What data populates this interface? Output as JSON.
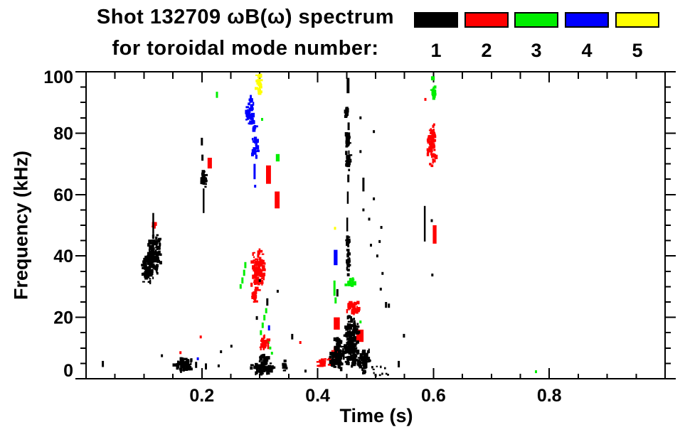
{
  "title": {
    "line1": "Shot 132709 ωB(ω) spectrum",
    "line2": "for toroidal mode number:"
  },
  "legend": {
    "entries": [
      {
        "label": "1",
        "color": "#000000"
      },
      {
        "label": "2",
        "color": "#ff0000"
      },
      {
        "label": "3",
        "color": "#00ee00"
      },
      {
        "label": "4",
        "color": "#0000ff"
      },
      {
        "label": "5",
        "color": "#ffff00"
      }
    ]
  },
  "axes": {
    "x": {
      "label": "Time (s)",
      "min": 0,
      "max": 1.0,
      "major_ticks": [
        0.2,
        0.4,
        0.6,
        0.8
      ],
      "minor_step": 0.05
    },
    "y": {
      "label": "Frequency (kHz)",
      "min": 0,
      "max": 100,
      "major_ticks": [
        0,
        20,
        40,
        60,
        80,
        100
      ],
      "minor_step": 5
    }
  },
  "chart_data": {
    "type": "scatter",
    "title": "Shot 132709 ωB(ω) spectrum for toroidal mode number",
    "xlabel": "Time (s)",
    "ylabel": "Frequency (kHz)",
    "xlim": [
      0,
      1.0
    ],
    "ylim": [
      0,
      100
    ],
    "grid": false,
    "legend_position": "top-right",
    "series": [
      {
        "name": "1",
        "color": "#000000",
        "clusters": [
          {
            "kind": "dash",
            "t": 0.029,
            "f": [
              3.8,
              5.8
            ]
          },
          {
            "kind": "blob",
            "t": [
              0.152,
              0.186
            ],
            "f": [
              2,
              7
            ],
            "n": 60
          },
          {
            "kind": "dash",
            "t": 0.19,
            "f": [
              3.5,
              5.5
            ]
          },
          {
            "kind": "dash",
            "t": 0.207,
            "f": [
              3,
              5
            ]
          },
          {
            "kind": "dot",
            "t": 0.229,
            "f": 4.2
          },
          {
            "kind": "blob",
            "t": [
              0.097,
              0.108
            ],
            "f": [
              31,
              41
            ],
            "n": 45
          },
          {
            "kind": "blob",
            "t": [
              0.106,
              0.119
            ],
            "f": [
              30,
              47
            ],
            "n": 75
          },
          {
            "kind": "blob",
            "t": [
              0.114,
              0.13
            ],
            "f": [
              33,
              48
            ],
            "n": 65
          },
          {
            "kind": "vline",
            "t": 0.116,
            "f": [
              47,
              54
            ]
          },
          {
            "kind": "dot",
            "t": 0.131,
            "f": 7.5
          },
          {
            "kind": "dash",
            "t": 0.2,
            "f": [
              76,
              78.5
            ]
          },
          {
            "kind": "dash",
            "t": 0.201,
            "f": [
              71,
              73
            ]
          },
          {
            "kind": "blob",
            "t": [
              0.199,
              0.209
            ],
            "f": [
              62,
              68.5
            ],
            "n": 30
          },
          {
            "kind": "vline",
            "t": 0.203,
            "f": [
              54,
              62
            ]
          },
          {
            "kind": "dash",
            "t": 0.4525,
            "f": [
              93,
              98
            ],
            "w": 4
          },
          {
            "kind": "blob",
            "t": [
              0.448,
              0.453
            ],
            "f": [
              84.5,
              89
            ],
            "n": 16
          },
          {
            "kind": "dash",
            "t": 0.4535,
            "f": [
              81,
              83.5
            ]
          },
          {
            "kind": "blob",
            "t": [
              0.449,
              0.456
            ],
            "f": [
              75,
              80.5
            ],
            "n": 22
          },
          {
            "kind": "blob",
            "t": [
              0.448,
              0.457
            ],
            "f": [
              67,
              74
            ],
            "n": 28
          },
          {
            "kind": "dash",
            "t": 0.453,
            "f": [
              64,
              66.5
            ]
          },
          {
            "kind": "vline",
            "t": 0.452,
            "f": [
              57,
              61
            ]
          },
          {
            "kind": "vline",
            "t": 0.451,
            "f": [
              48,
              52.5
            ]
          },
          {
            "kind": "blob",
            "t": [
              0.449,
              0.456
            ],
            "f": [
              43,
              47.5
            ],
            "n": 16
          },
          {
            "kind": "blob",
            "t": [
              0.45,
              0.456
            ],
            "f": [
              33,
              42
            ],
            "n": 20
          },
          {
            "kind": "blob",
            "t": [
              0.42,
              0.447
            ],
            "f": [
              2.5,
              11
            ],
            "n": 80
          },
          {
            "kind": "blob",
            "t": [
              0.428,
              0.442
            ],
            "f": [
              9,
              14.5
            ],
            "n": 20
          },
          {
            "kind": "blob",
            "t": [
              0.444,
              0.471
            ],
            "f": [
              2,
              21
            ],
            "n": 170
          },
          {
            "kind": "blob",
            "t": [
              0.468,
              0.492
            ],
            "f": [
              1.5,
              10
            ],
            "n": 55
          },
          {
            "kind": "speckle",
            "t": [
              0.493,
              0.522
            ],
            "f": [
              1,
              4
            ],
            "n": 12
          },
          {
            "kind": "blob",
            "t": [
              0.28,
              0.331
            ],
            "f": [
              1.4,
              5.5
            ],
            "n": 65
          },
          {
            "kind": "blob",
            "t": [
              0.296,
              0.318
            ],
            "f": [
              4,
              8.8
            ],
            "n": 30
          },
          {
            "kind": "dot",
            "t": 0.233,
            "f": 8.8
          },
          {
            "kind": "dot",
            "t": 0.251,
            "f": 10.6
          },
          {
            "kind": "dot",
            "t": 0.3,
            "f": 32
          },
          {
            "kind": "dash",
            "t": 0.295,
            "f": [
              19.2,
              20.4
            ]
          },
          {
            "kind": "vline",
            "t": 0.585,
            "f": [
              44.7,
              56.3
            ]
          },
          {
            "kind": "dot",
            "t": 0.597,
            "f": 51.5
          },
          {
            "kind": "dot",
            "t": 0.598,
            "f": 33.8
          },
          {
            "kind": "dot",
            "t": 0.474,
            "f": 85
          },
          {
            "kind": "dot",
            "t": 0.497,
            "f": 80.5
          },
          {
            "kind": "dot",
            "t": 0.474,
            "f": 74
          },
          {
            "kind": "dash",
            "t": 0.479,
            "f": [
              61,
              65.5
            ]
          },
          {
            "kind": "dot",
            "t": 0.497,
            "f": 58.6
          },
          {
            "kind": "dot",
            "t": 0.479,
            "f": 55
          },
          {
            "kind": "dot",
            "t": 0.489,
            "f": 52
          },
          {
            "kind": "dot",
            "t": 0.51,
            "f": 49.3
          },
          {
            "kind": "dot",
            "t": 0.507,
            "f": 44.7
          },
          {
            "kind": "dot",
            "t": 0.492,
            "f": 43.5
          },
          {
            "kind": "dot",
            "t": 0.503,
            "f": 40
          },
          {
            "kind": "dot",
            "t": 0.512,
            "f": 34.3
          },
          {
            "kind": "dot",
            "t": 0.509,
            "f": 29.2
          },
          {
            "kind": "dash",
            "t": 0.518,
            "f": [
              23.1,
              25
            ]
          },
          {
            "kind": "dash",
            "t": 0.523,
            "f": [
              23.1,
              24.5
            ]
          },
          {
            "kind": "dash",
            "t": 0.549,
            "f": [
              13.4,
              14.6
            ]
          },
          {
            "kind": "dash",
            "t": 0.54,
            "f": [
              3.7,
              5.8
            ]
          },
          {
            "kind": "dash",
            "t": 0.434,
            "f": [
              26.8,
              29.2
            ]
          },
          {
            "kind": "dash",
            "t": 0.356,
            "f": [
              12.8,
              14.6
            ]
          },
          {
            "kind": "blob",
            "t": [
              0.34,
              0.348
            ],
            "f": [
              2.3,
              6
            ],
            "n": 10
          },
          {
            "kind": "dot",
            "t": 0.379,
            "f": 2.5
          },
          {
            "kind": "dot",
            "t": 0.331,
            "f": 28.5
          },
          {
            "kind": "dash",
            "t": 0.313,
            "f": [
              23.8,
              26.2
            ]
          }
        ]
      },
      {
        "name": "2",
        "color": "#ff0000",
        "clusters": [
          {
            "kind": "blob",
            "t": [
              0.114,
              0.122
            ],
            "f": [
              48.5,
              51.5
            ],
            "n": 8
          },
          {
            "kind": "dash",
            "t": [
              0.211,
              0.216
            ],
            "f": [
              68.5,
              72
            ]
          },
          {
            "kind": "blob",
            "t": [
              0.284,
              0.31
            ],
            "f": [
              28,
              42.5
            ],
            "n": 110
          },
          {
            "kind": "blob",
            "t": [
              0.284,
              0.297
            ],
            "f": [
              24.5,
              29
            ],
            "n": 16
          },
          {
            "kind": "dash",
            "t": [
              0.312,
              0.318
            ],
            "f": [
              63.5,
              69.5
            ]
          },
          {
            "kind": "dash",
            "t": [
              0.327,
              0.333
            ],
            "f": [
              55.5,
              61
            ]
          },
          {
            "kind": "blob",
            "t": [
              0.3,
              0.316
            ],
            "f": [
              8.8,
              14
            ],
            "n": 28
          },
          {
            "kind": "dot",
            "t": 0.163,
            "f": 8.5
          },
          {
            "kind": "hband",
            "t": [
              0.398,
              0.424
            ],
            "f": [
              4,
              6.5
            ],
            "n": 22
          },
          {
            "kind": "blob",
            "t": [
              0.425,
              0.438
            ],
            "f": [
              6,
              10.5
            ],
            "n": 14
          },
          {
            "kind": "dash",
            "t": [
              0.429,
              0.437
            ],
            "f": [
              16,
              20
            ]
          },
          {
            "kind": "dash",
            "t": [
              0.468,
              0.478
            ],
            "f": [
              12,
              16
            ]
          },
          {
            "kind": "blob",
            "t": [
              0.447,
              0.474
            ],
            "f": [
              20.8,
              25.5
            ],
            "n": 40
          },
          {
            "kind": "dot",
            "t": 0.37,
            "f": 11.8
          },
          {
            "kind": "dot",
            "t": 0.198,
            "f": 13.6
          },
          {
            "kind": "blob",
            "t": [
              0.59,
              0.605
            ],
            "f": [
              68.5,
              83.5
            ],
            "n": 65
          },
          {
            "kind": "dot",
            "t": 0.586,
            "f": 91
          },
          {
            "kind": "dash",
            "t": [
              0.6,
              0.604
            ],
            "f": [
              44,
              50
            ]
          }
        ]
      },
      {
        "name": "3",
        "color": "#00ee00",
        "clusters": [
          {
            "kind": "dash",
            "t": 0.226,
            "f": [
              91.5,
              93.5
            ]
          },
          {
            "kind": "dot",
            "t": 0.304,
            "f": 84.5
          },
          {
            "kind": "dash",
            "t": [
              0.329,
              0.333
            ],
            "f": [
              70.8,
              73.2
            ]
          },
          {
            "kind": "dash",
            "t": 0.275,
            "f": [
              36,
              38
            ]
          },
          {
            "kind": "dash",
            "t": 0.273,
            "f": [
              33.5,
              35.5
            ]
          },
          {
            "kind": "dash",
            "t": 0.27,
            "f": [
              31,
              33
            ]
          },
          {
            "kind": "dash",
            "t": 0.267,
            "f": [
              29.3,
              30.8
            ]
          },
          {
            "kind": "dash",
            "t": 0.311,
            "f": [
              21.3,
              23
            ]
          },
          {
            "kind": "dash",
            "t": 0.308,
            "f": [
              19,
              20.8
            ]
          },
          {
            "kind": "dash",
            "t": 0.305,
            "f": [
              16.5,
              18.3
            ]
          },
          {
            "kind": "dash",
            "t": 0.302,
            "f": [
              14.2,
              15.8
            ]
          },
          {
            "kind": "dot",
            "t": 0.315,
            "f": 11.8
          },
          {
            "kind": "dot",
            "t": 0.318,
            "f": 10
          },
          {
            "kind": "dot",
            "t": 0.321,
            "f": 8.3
          },
          {
            "kind": "dash",
            "t": 0.429,
            "f": [
              27,
              32
            ]
          },
          {
            "kind": "dash",
            "t": 0.431,
            "f": [
              24.5,
              26.5
            ]
          },
          {
            "kind": "blob",
            "t": [
              0.448,
              0.468
            ],
            "f": [
              30,
              33.5
            ],
            "n": 14
          },
          {
            "kind": "dot",
            "t": 0.474,
            "f": 18.5
          },
          {
            "kind": "blob",
            "t": [
              0.597,
              0.604
            ],
            "f": [
              90,
              98
            ],
            "n": 16
          },
          {
            "kind": "dot",
            "t": 0.777,
            "f": 2.3
          }
        ]
      },
      {
        "name": "4",
        "color": "#0000ff",
        "clusters": [
          {
            "kind": "blob",
            "t": [
              0.272,
              0.292
            ],
            "f": [
              80,
              93.5
            ],
            "n": 45
          },
          {
            "kind": "blob",
            "t": [
              0.284,
              0.3
            ],
            "f": [
              72,
              84
            ],
            "n": 28
          },
          {
            "kind": "dash",
            "t": 0.291,
            "f": [
              65,
              70
            ]
          },
          {
            "kind": "dot",
            "t": 0.292,
            "f": 62.7
          },
          {
            "kind": "dash",
            "t": [
              0.429,
              0.433
            ],
            "f": [
              37,
              42
            ]
          },
          {
            "kind": "dash",
            "t": 0.316,
            "f": [
              15.7,
              17.4
            ]
          },
          {
            "kind": "dot",
            "t": 0.193,
            "f": 6.5
          }
        ]
      },
      {
        "name": "5",
        "color": "#ffff00",
        "clusters": [
          {
            "kind": "blob",
            "t": [
              0.294,
              0.304
            ],
            "f": [
              92,
              100.8
            ],
            "n": 26
          },
          {
            "kind": "dot",
            "t": 0.43,
            "f": 49
          }
        ]
      }
    ]
  }
}
